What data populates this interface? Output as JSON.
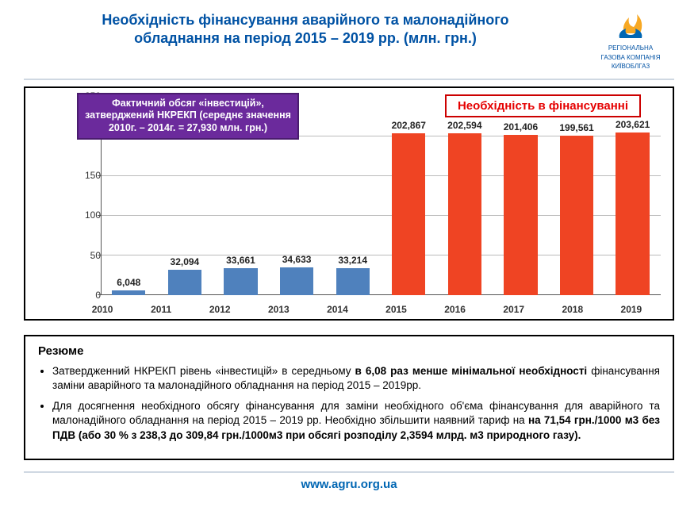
{
  "title": {
    "line1": "Необхідність фінансування аварійного та малонадійного",
    "line2": "обладнання на період 2015 – 2019 рр. (млн. грн.)",
    "color": "#0052a4",
    "fontsize": 18
  },
  "logo": {
    "company_line1": "РЕГІОНАЛЬНА",
    "company_line2": "ГАЗОВА КОМПАНІЯ",
    "company_line3": "КИЇВОБЛГАЗ",
    "flame_color_top": "#f7a823",
    "flame_color_bottom": "#0066b3"
  },
  "chart": {
    "type": "bar",
    "ylim": [
      0,
      250
    ],
    "ytick_step": 50,
    "yticks": [
      0,
      50,
      100,
      150,
      200,
      250
    ],
    "categories": [
      "2010",
      "2011",
      "2012",
      "2013",
      "2014",
      "2015",
      "2016",
      "2017",
      "2018",
      "2019"
    ],
    "values": [
      6.048,
      32.094,
      33.661,
      34.633,
      33.214,
      202.867,
      202.594,
      201.406,
      199.561,
      203.621
    ],
    "value_labels": [
      "6,048",
      "32,094",
      "33,661",
      "34,633",
      "33,214",
      "202,867",
      "202,594",
      "201,406",
      "199,561",
      "203,621"
    ],
    "bar_colors": [
      "#4f81bd",
      "#4f81bd",
      "#4f81bd",
      "#4f81bd",
      "#4f81bd",
      "#ef4423",
      "#ef4423",
      "#ef4423",
      "#ef4423",
      "#ef4423"
    ],
    "bar_width": 0.6,
    "gridline_color": "#bbbbbb",
    "axis_color": "#555555",
    "label_fontsize": 12
  },
  "annotations": {
    "purple": {
      "line1": "Фактичний обсяг «інвестицій»,",
      "line2": "затверджений НКРЕКП (середнє значення",
      "line3": "2010г. – 2014г. = 27,930  млн. грн.)",
      "bg": "#6b2a9c",
      "border": "#4a1c6e",
      "text_color": "#ffffff"
    },
    "red": {
      "text": "Необхідність в фінансуванні",
      "border": "#cc0000",
      "text_color": "#e50000"
    }
  },
  "resume": {
    "heading": "Резюме",
    "bullet1_a": "Затвердженний НКРЕКП рівень «інвестицій» в середньому ",
    "bullet1_b": "в 6,08 раз менше мінімальної необхідності",
    "bullet1_c": " фінансування заміни аварійного та малонадійного обладнання на період  2015 – 2019рр.",
    "bullet2_a": "Для досягнення необхідного обсягу фінансування для заміни необхідного  об'єма  фінансування для аварійного та малонадійного обладнання на період  2015 – 2019 рр. Необхідно збільшити наявний тариф на ",
    "bullet2_b": "на 71,54 грн./1000 м3 без ПДВ (або 30 % з 238,3 до 309,84 грн./1000м3 при обсягі розподілу  2,3594 млрд. м3 природного газу)."
  },
  "footer": {
    "url": "www.agru.org.ua",
    "color": "#0066b3"
  }
}
